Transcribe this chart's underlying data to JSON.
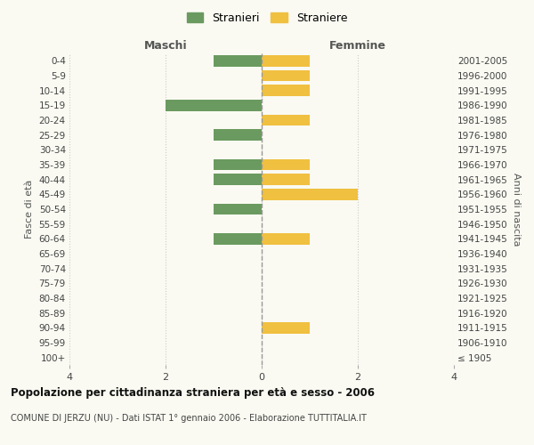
{
  "age_groups": [
    "100+",
    "95-99",
    "90-94",
    "85-89",
    "80-84",
    "75-79",
    "70-74",
    "65-69",
    "60-64",
    "55-59",
    "50-54",
    "45-49",
    "40-44",
    "35-39",
    "30-34",
    "25-29",
    "20-24",
    "15-19",
    "10-14",
    "5-9",
    "0-4"
  ],
  "birth_years": [
    "≤ 1905",
    "1906-1910",
    "1911-1915",
    "1916-1920",
    "1921-1925",
    "1926-1930",
    "1931-1935",
    "1936-1940",
    "1941-1945",
    "1946-1950",
    "1951-1955",
    "1956-1960",
    "1961-1965",
    "1966-1970",
    "1971-1975",
    "1976-1980",
    "1981-1985",
    "1986-1990",
    "1991-1995",
    "1996-2000",
    "2001-2005"
  ],
  "maschi_stranieri": [
    0,
    0,
    0,
    0,
    0,
    0,
    0,
    0,
    1,
    0,
    1,
    0,
    1,
    1,
    0,
    1,
    0,
    2,
    0,
    0,
    1
  ],
  "femmine_straniere": [
    0,
    0,
    1,
    0,
    0,
    0,
    0,
    0,
    1,
    0,
    0,
    2,
    1,
    1,
    0,
    0,
    1,
    0,
    1,
    1,
    1
  ],
  "stranieri_color": "#6a9a5f",
  "straniere_color": "#f0c040",
  "xlim": 4,
  "title": "Popolazione per cittadinanza straniera per età e sesso - 2006",
  "subtitle": "COMUNE DI JERZU (NU) - Dati ISTAT 1° gennaio 2006 - Elaborazione TUTTITALIA.IT",
  "ylabel_left": "Fasce di età",
  "ylabel_right": "Anni di nascita",
  "xlabel_maschi": "Maschi",
  "xlabel_femmine": "Femmine",
  "legend_stranieri": "Stranieri",
  "legend_straniere": "Straniere",
  "bg_color": "#fafaf2",
  "bar_height": 0.75
}
